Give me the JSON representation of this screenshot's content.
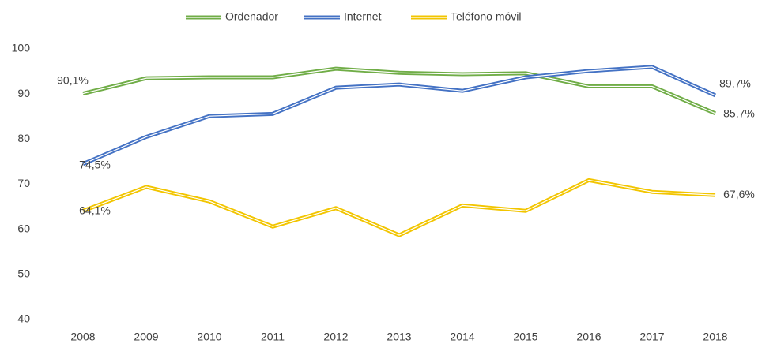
{
  "chart_data": {
    "type": "line",
    "categories": [
      "2008",
      "2009",
      "2010",
      "2011",
      "2012",
      "2013",
      "2014",
      "2015",
      "2016",
      "2017",
      "2018"
    ],
    "series": [
      {
        "name": "Ordenador",
        "color": "#70ad47",
        "values": [
          90.1,
          93.5,
          93.7,
          93.7,
          95.6,
          94.7,
          94.4,
          94.6,
          91.7,
          91.7,
          85.7
        ],
        "value_labels": [
          "90,1%",
          null,
          null,
          null,
          null,
          null,
          null,
          null,
          null,
          null,
          "85,7%"
        ]
      },
      {
        "name": "Internet",
        "color": "#4472c4",
        "values": [
          74.5,
          80.5,
          85.1,
          85.6,
          91.4,
          92.1,
          90.7,
          93.7,
          95.1,
          96.0,
          89.7
        ],
        "value_labels": [
          "74,5%",
          null,
          null,
          null,
          null,
          null,
          null,
          null,
          null,
          null,
          "89,7%"
        ]
      },
      {
        "name": "Teléfono móvil",
        "color": "#f2c500",
        "values": [
          64.1,
          69.4,
          66.2,
          60.6,
          64.7,
          58.7,
          65.3,
          64.1,
          70.9,
          68.3,
          67.6
        ],
        "value_labels": [
          "64,1%",
          null,
          null,
          null,
          null,
          null,
          null,
          null,
          null,
          null,
          "67,6%"
        ]
      }
    ],
    "ylim": [
      40,
      100
    ],
    "yticks": [
      40,
      50,
      60,
      70,
      80,
      90,
      100
    ],
    "grid": false,
    "legend": "top"
  }
}
